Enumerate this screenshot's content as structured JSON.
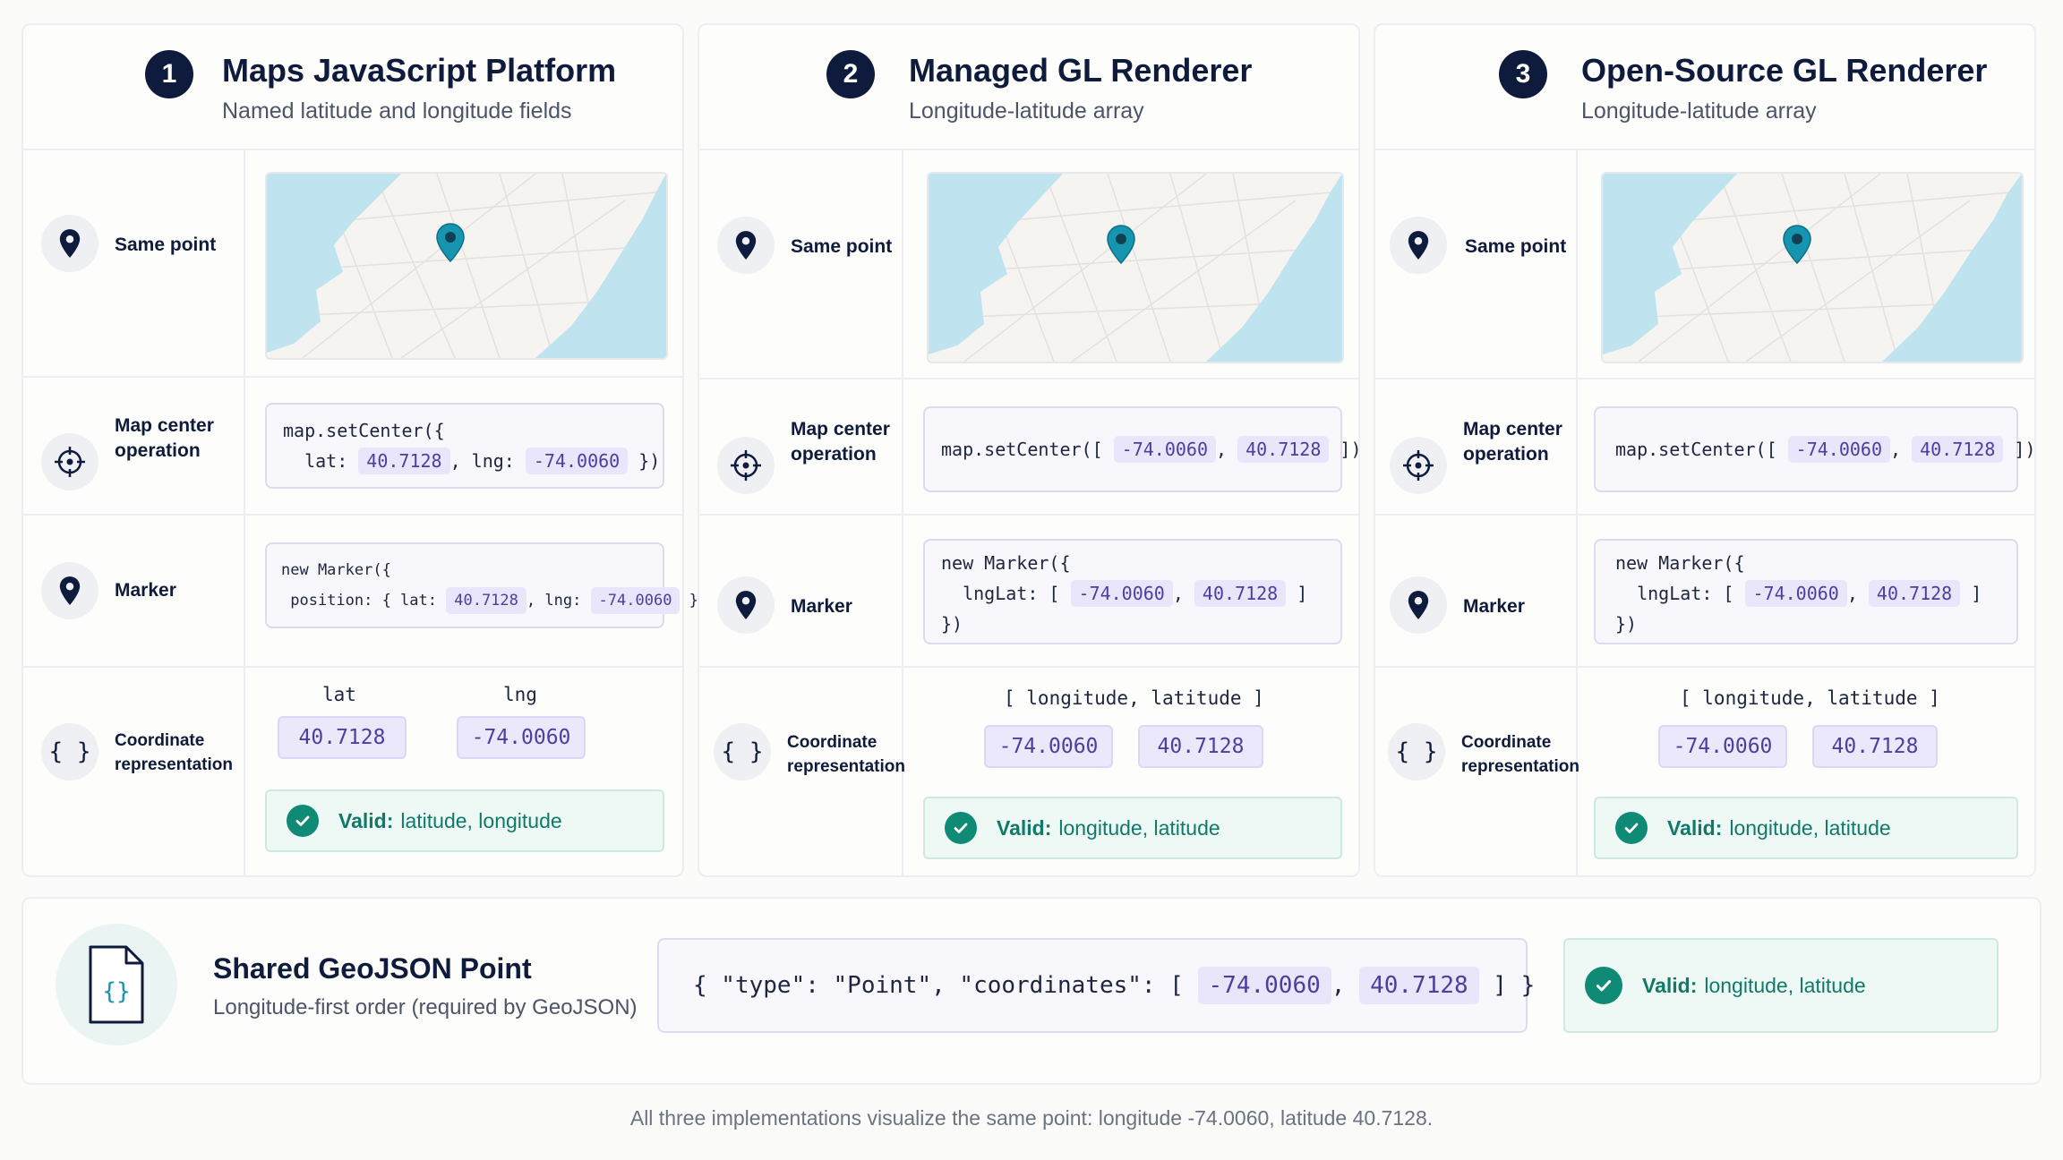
{
  "columns": [
    {
      "number": "1",
      "title": "Maps JavaScript Platform",
      "subtitle": "Named latitude and longitude fields",
      "rows": {
        "same_point": "Same point",
        "map_center": "Map center operation",
        "marker": "Marker",
        "coord_rep": "Coordinate representation"
      },
      "center_code": {
        "line1": "map.setCenter({",
        "lat_key": "  lat: ",
        "lat_val": "40.7128",
        "sep": ", lng: ",
        "lng_val": "-74.0060",
        "close": " })"
      },
      "marker_code": {
        "line1": "new Marker({",
        "pos_key": " position: { lat: ",
        "lat_val": "40.7128",
        "sep": ", lng: ",
        "lng_val": "-74.0060",
        "close": " } })"
      },
      "coord_labels": [
        "lat",
        "lng"
      ],
      "coord_values": [
        "40.7128",
        "-74.0060"
      ],
      "valid_label": "Valid:",
      "valid_text": "latitude, longitude"
    },
    {
      "number": "2",
      "title": "Managed GL Renderer",
      "subtitle": "Longitude-latitude array",
      "rows": {
        "same_point": "Same point",
        "map_center": "Map center operation",
        "marker": "Marker",
        "coord_rep": "Coordinate representation"
      },
      "center_code": {
        "prefix": "map.setCenter([ ",
        "lng_val": "-74.0060",
        "sep": ", ",
        "lat_val": "40.7128",
        "close": " ])"
      },
      "marker_code": {
        "line1": "new Marker({",
        "key": "  lngLat: [ ",
        "lng_val": "-74.0060",
        "sep": ", ",
        "lat_val": "40.7128",
        "close": " ]",
        "line3": "})"
      },
      "coord_header": "[ longitude, latitude ]",
      "coord_values": [
        "-74.0060",
        "40.7128"
      ],
      "valid_label": "Valid:",
      "valid_text": "longitude, latitude"
    },
    {
      "number": "3",
      "title": "Open-Source GL Renderer",
      "subtitle": "Longitude-latitude array",
      "rows": {
        "same_point": "Same point",
        "map_center": "Map center operation",
        "marker": "Marker",
        "coord_rep": "Coordinate representation"
      },
      "center_code": {
        "prefix": "map.setCenter([ ",
        "lng_val": "-74.0060",
        "sep": ", ",
        "lat_val": "40.7128",
        "close": " ])"
      },
      "marker_code": {
        "line1": "new Marker({",
        "key": "  lngLat: [ ",
        "lng_val": "-74.0060",
        "sep": ", ",
        "lat_val": "40.7128",
        "close": " ]",
        "line3": "})"
      },
      "coord_header": "[ longitude, latitude ]",
      "coord_values": [
        "-74.0060",
        "40.7128"
      ],
      "valid_label": "Valid:",
      "valid_text": "longitude, latitude"
    }
  ],
  "geojson": {
    "title": "Shared GeoJSON Point",
    "subtitle": "Longitude-first order (required by GeoJSON)",
    "code_prefix": "{ \"type\": \"Point\", \"coordinates\": [ ",
    "lng_val": "-74.0060",
    "sep": ", ",
    "lat_val": "40.7128",
    "code_close": " ] }",
    "valid_label": "Valid:",
    "valid_text": "longitude, latitude"
  },
  "footnote": "All three implementations visualize the same point: longitude -74.0060, latitude 40.7128.",
  "colors": {
    "navy": "#0f1b3d",
    "teal": "#0f8a74",
    "chip": "#e9e6fb",
    "water": "#bfe3ef",
    "pin": "#1595b0"
  },
  "icons": [
    "map-pin-icon",
    "crosshair-icon",
    "braces-icon",
    "check-icon",
    "json-file-icon"
  ]
}
